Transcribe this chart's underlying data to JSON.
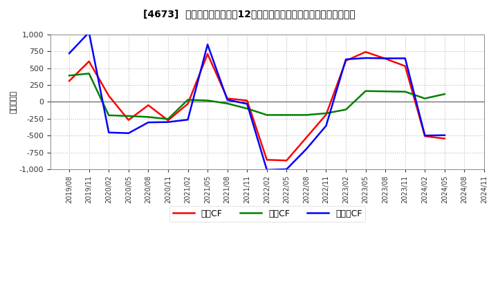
{
  "title": "[4673]  キャッシュフローの12か月移動合計の対前年同期増減額の推移",
  "ylabel": "（百万円）",
  "background_color": "#ffffff",
  "plot_bg_color": "#ffffff",
  "grid_color": "#bbbbbb",
  "ylim": [
    -1000,
    1000
  ],
  "yticks": [
    -1000,
    -750,
    -500,
    -250,
    0,
    250,
    500,
    750,
    1000
  ],
  "x_labels": [
    "2019/08",
    "2019/11",
    "2020/02",
    "2020/05",
    "2020/08",
    "2020/11",
    "2021/02",
    "2021/05",
    "2021/08",
    "2021/11",
    "2022/02",
    "2022/05",
    "2022/08",
    "2022/11",
    "2023/02",
    "2023/05",
    "2023/08",
    "2023/11",
    "2024/02",
    "2024/05",
    "2024/08",
    "2024/11"
  ],
  "operating_cf": [
    310,
    600,
    90,
    -270,
    -50,
    -275,
    -30,
    710,
    50,
    20,
    -860,
    -870,
    -530,
    -190,
    610,
    740,
    640,
    530,
    -510,
    -545,
    null,
    null
  ],
  "investing_cf": [
    390,
    420,
    -200,
    -210,
    -225,
    -255,
    30,
    20,
    -25,
    -100,
    -195,
    -195,
    -195,
    -170,
    -115,
    160,
    155,
    150,
    50,
    115,
    null,
    null
  ],
  "free_cf": [
    720,
    1030,
    -455,
    -465,
    -305,
    -300,
    -265,
    850,
    30,
    -30,
    -1010,
    -1000,
    -700,
    -355,
    630,
    650,
    645,
    645,
    -500,
    -495,
    null,
    null
  ],
  "legend_labels": [
    "営業CF",
    "投資CF",
    "フリーCF"
  ],
  "line_colors": [
    "#ff0000",
    "#008000",
    "#0000ff"
  ],
  "line_width": 1.8
}
